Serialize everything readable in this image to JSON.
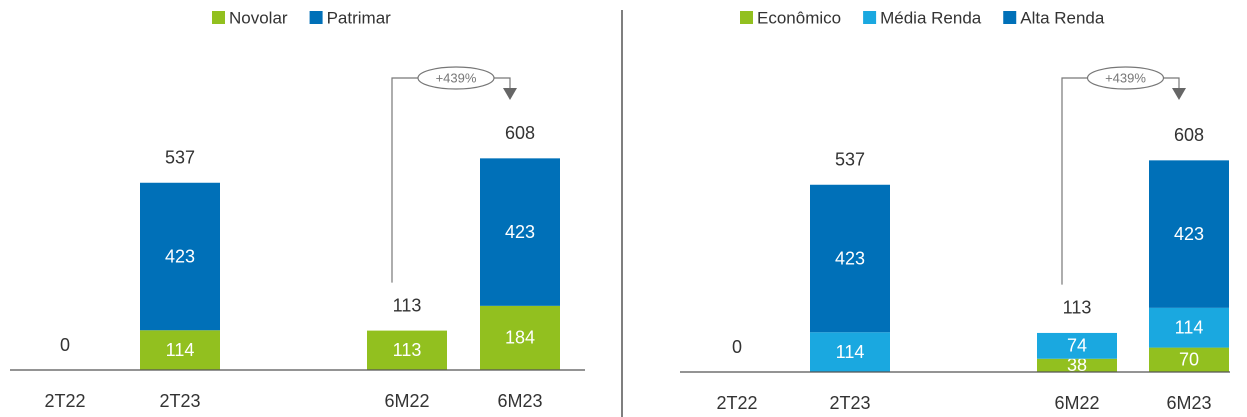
{
  "chart_data": [
    {
      "type": "stacked_bar",
      "categories": [
        "2T22",
        "2T23",
        "6M22",
        "6M23"
      ],
      "series": [
        {
          "name": "Novolar",
          "color": "#92c01f",
          "values": [
            null,
            114,
            113,
            184
          ]
        },
        {
          "name": "Patrimar",
          "color": "#0070b8",
          "values": [
            null,
            423,
            null,
            423
          ]
        }
      ],
      "totals": [
        0,
        537,
        113,
        608
      ],
      "annotation": "+439%"
    },
    {
      "type": "stacked_bar",
      "categories": [
        "2T22",
        "2T23",
        "6M22",
        "6M23"
      ],
      "series": [
        {
          "name": "Econômico",
          "color": "#92c01f",
          "values": [
            null,
            null,
            38,
            70
          ]
        },
        {
          "name": "Média Renda",
          "color": "#1aa8e0",
          "values": [
            null,
            114,
            74,
            114
          ]
        },
        {
          "name": "Alta Renda",
          "color": "#0070b8",
          "values": [
            null,
            423,
            null,
            423
          ]
        }
      ],
      "totals": [
        0,
        537,
        113,
        608
      ],
      "annotation": "+439%"
    }
  ]
}
